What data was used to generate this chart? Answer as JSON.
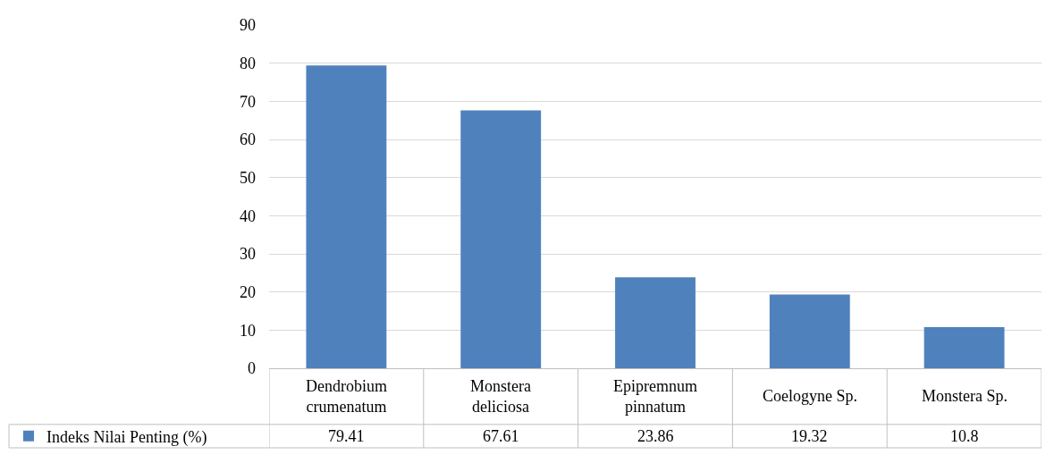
{
  "chart_data": {
    "type": "bar",
    "categories": [
      "Dendrobium crumenatum",
      "Monstera deliciosa",
      "Epipremnum pinnatum",
      "Coelogyne Sp.",
      "Monstera Sp."
    ],
    "series": [
      {
        "name": "Indeks Nilai Penting (%)",
        "color": "#4f81bd",
        "values": [
          79.41,
          67.61,
          23.86,
          19.32,
          10.8
        ]
      }
    ],
    "ylim": [
      0,
      90
    ],
    "yticks": [
      0,
      10,
      20,
      30,
      40,
      50,
      60,
      70,
      80,
      90
    ],
    "grid": "y",
    "legend": "bottom left",
    "data_labels": true
  }
}
